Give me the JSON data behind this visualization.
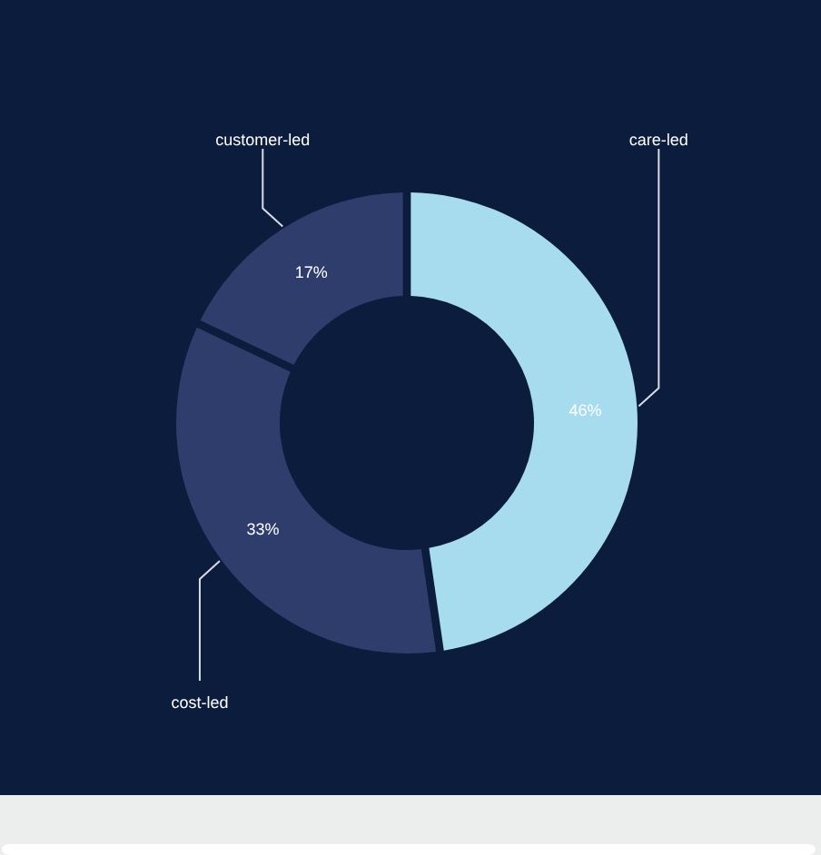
{
  "chart_data": {
    "type": "donut",
    "categories": [
      "care-led",
      "cost-led",
      "customer-led"
    ],
    "values": [
      46,
      33,
      17
    ],
    "value_labels": [
      "46%",
      "33%",
      "17%"
    ],
    "colors": [
      "#a6dcee",
      "#2e3d6b",
      "#2e3d6b"
    ]
  }
}
